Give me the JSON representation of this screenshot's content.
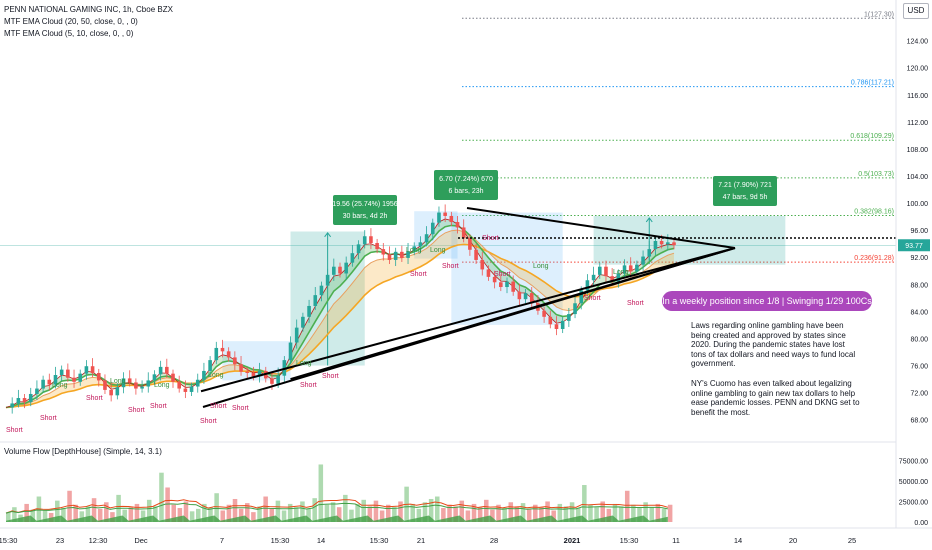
{
  "header": {
    "symbol_line": "PENN NATIONAL GAMING INC, 1h, Cboe BZX",
    "indicator_1": "MTF EMA Cloud (20, 50, close, 0, , 0)",
    "indicator_2": "MTF EMA Cloud (5, 10, close, 0, , 0)",
    "currency": "USD",
    "volume_indicator": "Volume Flow [DepthHouse] (Simple, 14, 3.1)"
  },
  "colors": {
    "bull": "#26a69a",
    "bear": "#ef5350",
    "ema_fast": "#4caf50",
    "ema_slow": "#f5a623",
    "triangle": "#000000",
    "fib_green": "#4caf50",
    "fib_red": "#f44336",
    "fib_gray": "#787b86",
    "fib_blue": "#2196f3",
    "callout": "#ab47bc",
    "range_box": "#26a69a"
  },
  "chart_data": {
    "type": "candlestick",
    "ylim": [
      65,
      130
    ],
    "y_ticks": [
      68,
      72,
      76,
      80,
      84,
      88,
      92,
      96,
      100,
      104,
      108,
      112,
      116,
      120,
      124
    ],
    "y_tick_labels": [
      "68.00",
      "72.00",
      "76.00",
      "80.00",
      "84.00",
      "88.00",
      "92.00",
      "96.00",
      "100.00",
      "104.00",
      "108.00",
      "112.00",
      "116.00",
      "120.00",
      "124.00"
    ],
    "x_tick_labels": [
      "15:30",
      "23",
      "12:30",
      "Dec",
      "7",
      "15:30",
      "14",
      "15:30",
      "21",
      "28",
      "2021",
      "15:30",
      "11",
      "14",
      "20",
      "25"
    ],
    "last_price": "93.77",
    "price_path": [
      69.8,
      70.4,
      71.2,
      70.6,
      71.8,
      72.6,
      73.9,
      73.2,
      74.6,
      75.4,
      74.2,
      73.6,
      74.8,
      75.9,
      74.9,
      73.8,
      72.4,
      71.6,
      72.8,
      74.1,
      73.5,
      72.6,
      72.9,
      73.8,
      74.7,
      75.8,
      74.8,
      73.6,
      72.6,
      72.1,
      72.9,
      73.9,
      75.2,
      76.8,
      78.6,
      78.1,
      77.2,
      76.2,
      75.1,
      74.9,
      74.4,
      75.2,
      74.1,
      73.3,
      74.5,
      76.8,
      79.4,
      81.6,
      83.2,
      84.8,
      86.4,
      87.8,
      89.4,
      90.6,
      89.6,
      91.2,
      92.6,
      93.9,
      95.1,
      94.1,
      93.2,
      92.4,
      91.6,
      92.8,
      91.9,
      92.9,
      93.6,
      94.2,
      95.4,
      97.1,
      98.6,
      98.1,
      97.2,
      96.4,
      94.8,
      93.1,
      91.6,
      90.2,
      89.1,
      88.3,
      87.6,
      88.4,
      86.9,
      85.8,
      86.7,
      85.2,
      84.1,
      83.2,
      82.1,
      81.4,
      82.6,
      83.6,
      85.2,
      87.1,
      88.6,
      89.4,
      90.6,
      89.2,
      88.4,
      89.6,
      90.8,
      89.9,
      90.9,
      92.1,
      93.2,
      94.4,
      93.9,
      94.2,
      93.77
    ],
    "volumes": [
      12000,
      18000,
      9000,
      22000,
      15000,
      31000,
      14000,
      11000,
      26000,
      17000,
      38000,
      21000,
      13000,
      19000,
      29000,
      16000,
      24000,
      12000,
      33000,
      15000,
      18000,
      22000,
      14000,
      27000,
      19000,
      60000,
      42000,
      21000,
      17000,
      25000,
      13000,
      16000,
      22000,
      18000,
      35000,
      14000,
      21000,
      28000,
      16000,
      23000,
      12000,
      19000,
      31000,
      17000,
      26000,
      14000,
      22000,
      18000,
      25000,
      16000,
      29000,
      70000,
      21000,
      24000,
      18000,
      33000,
      15000,
      22000,
      27000,
      19000,
      26000,
      14000,
      21000,
      18000,
      25000,
      43000,
      22000,
      16000,
      24000,
      28000,
      31000,
      17000,
      21000,
      19000,
      26000,
      14000,
      22000,
      18000,
      27000,
      15000,
      21000,
      17000,
      24000,
      19000,
      23000,
      16000,
      21000,
      18000,
      25000,
      14000,
      22000,
      19000,
      24000,
      17000,
      45000,
      21000,
      18000,
      25000,
      16000,
      22000,
      19000,
      38000,
      21000,
      17000,
      24000,
      18000,
      22000,
      16000,
      21000
    ],
    "volume_y_ticks": [
      0,
      25000,
      50000,
      75000
    ],
    "volume_y_tick_labels": [
      "0.00",
      "25000.00",
      "50000.00",
      "75000.00"
    ],
    "fibonacci": [
      {
        "label": "1(127.30)",
        "value": 127.3
      },
      {
        "label": "0.786(117.21)",
        "value": 117.21
      },
      {
        "label": "0.618(109.29)",
        "value": 109.29
      },
      {
        "label": "0.5(103.73)",
        "value": 103.73
      },
      {
        "label": "0.382(98.16)",
        "value": 98.16
      },
      {
        "label": "0.236(91.28)",
        "value": 91.28
      }
    ],
    "measure_boxes": [
      {
        "line1": "19.56 (25.74%) 1956",
        "line2": "30 bars, 4d 2h"
      },
      {
        "line1": "6.70 (7.24%) 670",
        "line2": "6 bars, 23h"
      },
      {
        "line1": "7.21 (7.90%) 721",
        "line2": "47 bars, 9d 5h"
      }
    ],
    "signal_labels": [
      "Short",
      "Short",
      "Long",
      "Short",
      "Long",
      "Short",
      "Short",
      "Long",
      "Short",
      "Long",
      "Short",
      "Short",
      "Long",
      "Short",
      "Short",
      "Long",
      "Short",
      "Long",
      "Short",
      "Short",
      "Short",
      "Long",
      "Short",
      "Long",
      "Short"
    ]
  },
  "annotations": {
    "callout": "In a weekly position since 1/8 | Swinging 1/29 100Cs",
    "note_p1": "Laws regarding online gambling have been being created and approved by states since 2020. During the pandemic states have lost tons of tax dollars and need ways to fund local government.",
    "note_p2": "NY's Cuomo has even talked about legalizing online gambling to gain new tax dollars to help ease pandemic losses. PENN and DKNG set to benefit the most."
  }
}
